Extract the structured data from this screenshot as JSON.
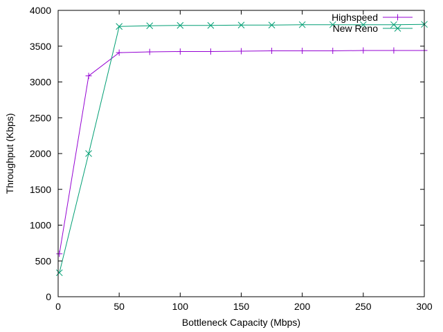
{
  "chart_data": {
    "type": "line",
    "xlabel": "Bottleneck Capacity (Mbps)",
    "ylabel": "Throughput (Kbps)",
    "xlim": [
      0,
      300
    ],
    "ylim": [
      0,
      4000
    ],
    "xticks": [
      0,
      50,
      100,
      150,
      200,
      250,
      300
    ],
    "yticks": [
      0,
      500,
      1000,
      1500,
      2000,
      2500,
      3000,
      3500,
      4000
    ],
    "grid": false,
    "legend_position": "top-right",
    "series": [
      {
        "name": "Highspeed",
        "color": "#9400d3",
        "marker": "plus",
        "x": [
          1,
          25,
          50,
          75,
          100,
          125,
          150,
          175,
          200,
          225,
          250,
          275,
          300
        ],
        "y": [
          600,
          3085,
          3410,
          3420,
          3425,
          3425,
          3430,
          3435,
          3435,
          3435,
          3440,
          3440,
          3440
        ]
      },
      {
        "name": "New Reno",
        "color": "#009e73",
        "marker": "cross",
        "x": [
          1,
          25,
          50,
          75,
          100,
          125,
          150,
          175,
          200,
          225,
          250,
          275,
          300
        ],
        "y": [
          335,
          2000,
          3775,
          3785,
          3790,
          3790,
          3795,
          3795,
          3800,
          3800,
          3800,
          3800,
          3805
        ]
      }
    ]
  }
}
